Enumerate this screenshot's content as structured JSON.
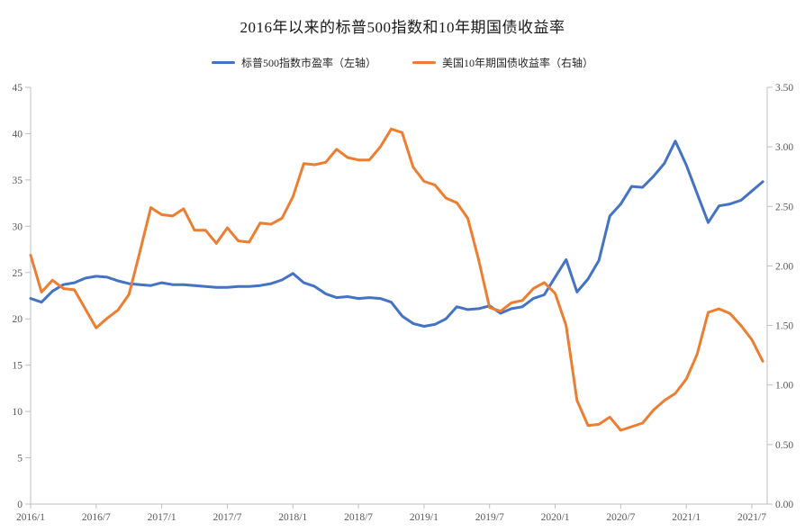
{
  "title": "2016年以来的标普500指数和10年期国债收益率",
  "legend": {
    "items": [
      {
        "label": "标普500指数市盈率（左轴）",
        "color": "#4472C4"
      },
      {
        "label": "美国10年期国债收益率（右轴）",
        "color": "#ED7D31"
      }
    ]
  },
  "colors": {
    "background": "#FFFFFF",
    "axis_line": "#BFBFBF",
    "tick_label": "#595959",
    "title_text": "#1A1A1A",
    "series_blue": "#4472C4",
    "series_orange": "#ED7D31"
  },
  "chart_data": {
    "type": "line",
    "title": "2016年以来的标普500指数和10年期国债收益率",
    "grid": "off",
    "legend_position": "top",
    "frequency": "monthly",
    "x_axis": {
      "tick_labels": [
        "2016/1",
        "2016/7",
        "2017/1",
        "2017/7",
        "2018/1",
        "2018/7",
        "2019/1",
        "2019/7",
        "2020/1",
        "2020/7",
        "2021/1",
        "2021/7"
      ],
      "points_per_tick": 6
    },
    "left_axis": {
      "min": 0,
      "max": 45,
      "step": 5,
      "tick_labels_top_down": [
        "45",
        "40",
        "35",
        "30",
        "25",
        "20",
        "15",
        "10",
        "5",
        "0"
      ]
    },
    "right_axis": {
      "min": 0,
      "max": 3.5,
      "step": 0.5,
      "tick_labels_top_down": [
        "3.50",
        "3.00",
        "2.50",
        "2.00",
        "1.50",
        "1.00",
        "0.50",
        "0.00"
      ]
    },
    "x": [
      "2016/1",
      "2016/2",
      "2016/3",
      "2016/4",
      "2016/5",
      "2016/6",
      "2016/7",
      "2016/8",
      "2016/9",
      "2016/10",
      "2016/11",
      "2016/12",
      "2017/1",
      "2017/2",
      "2017/3",
      "2017/4",
      "2017/5",
      "2017/6",
      "2017/7",
      "2017/8",
      "2017/9",
      "2017/10",
      "2017/11",
      "2017/12",
      "2018/1",
      "2018/2",
      "2018/3",
      "2018/4",
      "2018/5",
      "2018/6",
      "2018/7",
      "2018/8",
      "2018/9",
      "2018/10",
      "2018/11",
      "2018/12",
      "2019/1",
      "2019/2",
      "2019/3",
      "2019/4",
      "2019/5",
      "2019/6",
      "2019/7",
      "2019/8",
      "2019/9",
      "2019/10",
      "2019/11",
      "2019/12",
      "2020/1",
      "2020/2",
      "2020/3",
      "2020/4",
      "2020/5",
      "2020/6",
      "2020/7",
      "2020/8",
      "2020/9",
      "2020/10",
      "2020/11",
      "2020/12",
      "2021/1",
      "2021/2",
      "2021/3",
      "2021/4",
      "2021/5",
      "2021/6",
      "2021/7",
      "2021/8"
    ],
    "series": [
      {
        "name": "标普500指数市盈率（左轴）",
        "axis": "left",
        "color": "#4472C4",
        "values": [
          22.2,
          21.8,
          23.0,
          23.7,
          23.9,
          24.4,
          24.6,
          24.5,
          24.1,
          23.8,
          23.7,
          23.6,
          23.9,
          23.7,
          23.7,
          23.6,
          23.5,
          23.4,
          23.4,
          23.5,
          23.5,
          23.6,
          23.8,
          24.2,
          24.9,
          23.9,
          23.5,
          22.7,
          22.3,
          22.4,
          22.2,
          22.3,
          22.2,
          21.8,
          20.3,
          19.5,
          19.2,
          19.4,
          20.0,
          21.3,
          21.0,
          21.1,
          21.4,
          20.6,
          21.1,
          21.3,
          22.2,
          22.6,
          24.5,
          26.4,
          22.9,
          24.3,
          26.3,
          31.1,
          32.4,
          34.3,
          34.2,
          35.4,
          36.8,
          39.2,
          36.6,
          33.5,
          30.4,
          32.2,
          32.4,
          32.8,
          33.8,
          34.8
        ]
      },
      {
        "name": "美国10年期国债收益率（右轴）",
        "axis": "right",
        "color": "#ED7D31",
        "values": [
          2.09,
          1.78,
          1.88,
          1.81,
          1.8,
          1.64,
          1.48,
          1.56,
          1.63,
          1.76,
          2.12,
          2.49,
          2.43,
          2.42,
          2.48,
          2.3,
          2.3,
          2.19,
          2.32,
          2.21,
          2.2,
          2.36,
          2.35,
          2.4,
          2.58,
          2.86,
          2.85,
          2.87,
          2.98,
          2.91,
          2.89,
          2.89,
          3.0,
          3.15,
          3.12,
          2.83,
          2.71,
          2.68,
          2.57,
          2.53,
          2.4,
          2.05,
          1.65,
          1.62,
          1.69,
          1.71,
          1.81,
          1.86,
          1.77,
          1.5,
          0.87,
          0.66,
          0.67,
          0.73,
          0.62,
          0.65,
          0.68,
          0.79,
          0.87,
          0.93,
          1.05,
          1.26,
          1.61,
          1.64,
          1.6,
          1.5,
          1.38,
          1.2
        ]
      }
    ]
  }
}
